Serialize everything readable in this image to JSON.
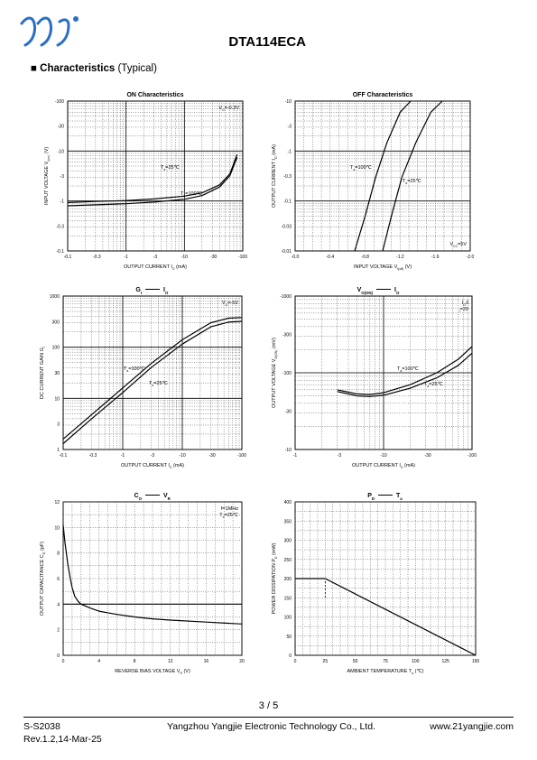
{
  "header": {
    "part_number": "DTA114ECA",
    "logo_icon": "yj-logo-icon",
    "logo_color": "#2a6fc4"
  },
  "section": {
    "bullet": "■",
    "title": "Characteristics",
    "subtitle": "(Typical)"
  },
  "footer": {
    "page": "3 / 5",
    "doc_id": "S-S2038",
    "revision": "Rev.1.2,14-Mar-25",
    "company": "Yangzhou Yangjie Electronic Technology Co., Ltd.",
    "website": "www.21yangjie.com"
  },
  "chart_data": [
    {
      "id": "on",
      "type": "line",
      "title": "ON Characteristics",
      "xlabel": "OUTPUT CURRENT",
      "xsym": "I",
      "xsub": "O",
      "xunit": "(mA)",
      "ylabel": "INPUT VOLTAGE",
      "ysym": "V",
      "ysub": "I(on)",
      "yunit": "(V)",
      "xscale": "log",
      "yscale": "log",
      "xlim": [
        -0.1,
        -100
      ],
      "ylim": [
        -0.1,
        -100
      ],
      "xticks": [
        "-0.1",
        "-0.3",
        "-1",
        "-3",
        "-10",
        "-30",
        "-100"
      ],
      "yticks": [
        "-0.1",
        "-0.3",
        "-1",
        "-3",
        "-10",
        "-30",
        "-100"
      ],
      "conditions": [
        {
          "sym": "V",
          "sub": "O",
          "rest": "=-0.3V"
        }
      ],
      "grid": true,
      "series": [
        {
          "name": "Ta=25℃",
          "x": [
            -0.1,
            -0.3,
            -1,
            -3,
            -10,
            -20,
            -40,
            -60,
            -80
          ],
          "y": [
            -0.93,
            -0.98,
            -1.02,
            -1.1,
            -1.25,
            -1.45,
            -2.1,
            -3.5,
            -8.5
          ],
          "label": {
            "sym": "T",
            "sub": "a",
            "rest": "=25℃"
          }
        },
        {
          "name": "Ta=100℃",
          "x": [
            -0.1,
            -0.3,
            -1,
            -3,
            -10,
            -20,
            -40,
            -60,
            -80
          ],
          "y": [
            -0.8,
            -0.84,
            -0.88,
            -0.95,
            -1.08,
            -1.28,
            -1.9,
            -3.2,
            -7.5
          ],
          "label": {
            "sym": "T",
            "sub": "a",
            "rest": "=100℃"
          }
        }
      ]
    },
    {
      "id": "off",
      "type": "line",
      "title": "OFF Characteristics",
      "xlabel": "INPUT VOLTAGE",
      "xsym": "V",
      "xsub": "I(off)",
      "xunit": "(V)",
      "ylabel": "OUTPUT CURRENT",
      "ysym": "I",
      "ysub": "O",
      "yunit": "(mA)",
      "xscale": "linear",
      "yscale": "log",
      "xlim": [
        0.0,
        -2.0
      ],
      "ylim": [
        -0.01,
        -10
      ],
      "xticks": [
        "-0.0",
        "-0.4",
        "-0.8",
        "-1.2",
        "-1.6",
        "-2.0"
      ],
      "yticks": [
        "-0.01",
        "-0.03",
        "-0.1",
        "-0.3",
        "-1",
        "-3",
        "-10"
      ],
      "conditions": [
        {
          "sym": "V",
          "sub": "CC",
          "rest": "=5V"
        }
      ],
      "grid": true,
      "series": [
        {
          "name": "Ta=100℃",
          "x": [
            -0.68,
            -0.8,
            -0.92,
            -1.05,
            -1.2,
            -1.32
          ],
          "y": [
            -0.01,
            -0.05,
            -0.3,
            -1.5,
            -6,
            -10
          ],
          "label": {
            "sym": "T",
            "sub": "a",
            "rest": "=100℃"
          }
        },
        {
          "name": "Ta=25℃",
          "x": [
            -1.0,
            -1.1,
            -1.22,
            -1.38,
            -1.55,
            -1.68
          ],
          "y": [
            -0.01,
            -0.05,
            -0.3,
            -1.5,
            -6,
            -10
          ],
          "label": {
            "sym": "T",
            "sub": "a",
            "rest": "=25℃"
          }
        }
      ]
    },
    {
      "id": "gain",
      "type": "line",
      "title": "G — I",
      "title_left": {
        "sym": "G",
        "sub": "I"
      },
      "title_right": {
        "sym": "I",
        "sub": "O"
      },
      "xlabel": "OUTPUT CURRENT",
      "xsym": "I",
      "xsub": "O",
      "xunit": "(mA)",
      "ylabel": "DC CURRENT GAIN",
      "ysym": "G",
      "ysub": "I",
      "yunit": "",
      "xscale": "log",
      "yscale": "log",
      "xlim": [
        -0.1,
        -100
      ],
      "ylim": [
        1,
        1000
      ],
      "xticks": [
        "-0.1",
        "-0.3",
        "-1",
        "-3",
        "-10",
        "-30",
        "-100"
      ],
      "yticks": [
        "1",
        "3",
        "10",
        "30",
        "100",
        "300",
        "1000"
      ],
      "conditions": [
        {
          "sym": "V",
          "sub": "O",
          "rest": "=-5V"
        }
      ],
      "grid": true,
      "series": [
        {
          "name": "Ta=100℃",
          "x": [
            -0.1,
            -0.3,
            -1,
            -3,
            -10,
            -30,
            -60,
            -100
          ],
          "y": [
            1.6,
            4.8,
            16,
            48,
            140,
            300,
            370,
            380
          ],
          "label": {
            "sym": "T",
            "sub": "a",
            "rest": "=100℃"
          }
        },
        {
          "name": "Ta=25℃",
          "x": [
            -0.1,
            -0.3,
            -1,
            -3,
            -10,
            -30,
            -60,
            -100
          ],
          "y": [
            1.3,
            4,
            13,
            40,
            115,
            250,
            310,
            320
          ],
          "label": {
            "sym": "T",
            "sub": "a",
            "rest": "=25℃"
          }
        }
      ]
    },
    {
      "id": "vo",
      "type": "line",
      "title": "V — I",
      "title_left": {
        "sym": "V",
        "sub": "O(ON)"
      },
      "title_right": {
        "sym": "I",
        "sub": "O"
      },
      "xlabel": "OUTPUT CURRENT",
      "xsym": "I",
      "xsub": "O",
      "xunit": "(mA)",
      "ylabel": "OUTPUT VOLTAGE",
      "ysym": "V",
      "ysub": "O(ON)",
      "yunit": "(mV)",
      "xscale": "log",
      "yscale": "log",
      "xlim": [
        -1,
        -100
      ],
      "ylim": [
        -10,
        -1000
      ],
      "xticks": [
        "-1",
        "-3",
        "-10",
        "-30",
        "-100"
      ],
      "yticks": [
        "-10",
        "-30",
        "-100",
        "-300",
        "-1000"
      ],
      "conditions": [
        {
          "sym": "I",
          "sub": "O",
          "rest": "/I"
        },
        {
          "sym": "",
          "sub": "I",
          "rest": "=20"
        }
      ],
      "grid": true,
      "series": [
        {
          "name": "Ta=100℃",
          "x": [
            -3,
            -5,
            -7,
            -10,
            -20,
            -40,
            -70,
            -100
          ],
          "y": [
            -60,
            -53,
            -52,
            -55,
            -70,
            -100,
            -150,
            -220
          ],
          "label": {
            "sym": "T",
            "sub": "a",
            "rest": "=100℃"
          }
        },
        {
          "name": "Ta=25℃",
          "x": [
            -3,
            -5,
            -7,
            -10,
            -20,
            -40,
            -70,
            -100
          ],
          "y": [
            -57,
            -50,
            -49,
            -51,
            -63,
            -86,
            -125,
            -180
          ],
          "label": {
            "sym": "T",
            "sub": "a",
            "rest": "=25℃"
          }
        }
      ]
    },
    {
      "id": "cap",
      "type": "line",
      "title": "C — V",
      "title_left": {
        "sym": "C",
        "sub": "O"
      },
      "title_right": {
        "sym": "V",
        "sub": "R"
      },
      "xlabel": "REVERSE BIAS VOLTAGE",
      "xsym": "V",
      "xsub": "R",
      "xunit": "(V)",
      "ylabel": "OUTPUT CAPACITANCE",
      "ysym": "C",
      "ysub": "O",
      "yunit": "(pF)",
      "xscale": "linear",
      "yscale": "linear",
      "xlim": [
        0,
        20
      ],
      "ylim": [
        0,
        12
      ],
      "xticks": [
        "0",
        "4",
        "8",
        "12",
        "16",
        "20"
      ],
      "yticks": [
        "0",
        "2",
        "4",
        "6",
        "8",
        "10",
        "12"
      ],
      "conditions": [
        {
          "sym": "",
          "sub": "",
          "rest": "f=1MHz"
        },
        {
          "sym": "T",
          "sub": "a",
          "rest": "=25℃"
        }
      ],
      "grid": true,
      "series": [
        {
          "name": "Co",
          "x": [
            0,
            0.2,
            0.5,
            0.8,
            1,
            1.3,
            1.7,
            2,
            3,
            4,
            6,
            8,
            10,
            12,
            16,
            20
          ],
          "y": [
            10.2,
            8.8,
            7.2,
            6,
            5.3,
            4.6,
            4.2,
            4.0,
            3.7,
            3.45,
            3.2,
            3.0,
            2.85,
            2.75,
            2.6,
            2.45
          ]
        }
      ],
      "hline": 4
    },
    {
      "id": "pd",
      "type": "line",
      "title": "P — T",
      "title_left": {
        "sym": "P",
        "sub": "D"
      },
      "title_right": {
        "sym": "T",
        "sub": "a"
      },
      "xlabel": "AMBIENT TEMPERATURE",
      "xsym": "T",
      "xsub": "a",
      "xunit": "(℃)",
      "ylabel": "POWER DISSIPATION",
      "ysym": "P",
      "ysub": "D",
      "yunit": "(mW)",
      "xscale": "linear",
      "yscale": "linear",
      "xlim": [
        0,
        150
      ],
      "ylim": [
        0,
        400
      ],
      "xticks": [
        "0",
        "25",
        "50",
        "75",
        "100",
        "125",
        "150"
      ],
      "yticks": [
        "0",
        "50",
        "100",
        "150",
        "200",
        "250",
        "300",
        "350",
        "400"
      ],
      "conditions": [],
      "grid": true,
      "series": [
        {
          "name": "PD",
          "x": [
            0,
            25,
            150
          ],
          "y": [
            200,
            200,
            0
          ]
        }
      ]
    }
  ]
}
